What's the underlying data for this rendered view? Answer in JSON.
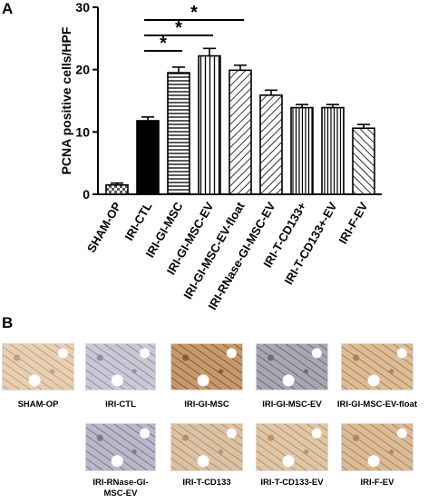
{
  "panels": {
    "a_label": "A",
    "b_label": "B"
  },
  "chart_data": {
    "type": "bar",
    "title": "",
    "xlabel": "",
    "ylabel": "PCNA positive cells/HPF",
    "ylim": [
      0,
      30
    ],
    "yticks": [
      0,
      10,
      20,
      30
    ],
    "grid": false,
    "categories": [
      "SHAM-OP",
      "IRI-CTL",
      "IRI-GI-MSC",
      "IRI-GI-MSC-EV",
      "IRI-GI-MSC-EV-float",
      "IRI-RNase-GI-MSC-EV",
      "IRI-T-CD133+",
      "IRI-T-CD133+-EV",
      "IRI-F-EV"
    ],
    "values": [
      1.5,
      11.8,
      19.5,
      22.2,
      19.9,
      15.9,
      13.9,
      13.9,
      10.6
    ],
    "errors": [
      0.3,
      0.6,
      0.9,
      1.2,
      0.8,
      0.8,
      0.5,
      0.5,
      0.6
    ],
    "patterns": [
      "checker",
      "solid",
      "hlines",
      "vlines",
      "diag-right",
      "diag-right",
      "vlines-dense",
      "vlines-dense",
      "diag-left"
    ],
    "significance": [
      {
        "from": "IRI-CTL",
        "to": "IRI-GI-MSC",
        "label": "*"
      },
      {
        "from": "IRI-CTL",
        "to": "IRI-GI-MSC-EV",
        "label": "*"
      },
      {
        "from": "IRI-CTL",
        "to": "IRI-GI-MSC-EV-float",
        "label": "*"
      }
    ]
  },
  "micrographs": [
    {
      "label": "SHAM-OP",
      "stain": "#e6cfb4",
      "accent": "#c99d78"
    },
    {
      "label": "IRI-CTL",
      "stain": "#c9c9d6",
      "accent": "#8f8fa8"
    },
    {
      "label": "IRI-GI-MSC",
      "stain": "#c49a6c",
      "accent": "#8a5a30"
    },
    {
      "label": "IRI-GI-MSC-EV",
      "stain": "#a8a6b2",
      "accent": "#6f6b7c"
    },
    {
      "label": "IRI-GI-MSC-EV-float",
      "stain": "#dcbd98",
      "accent": "#b08058"
    },
    {
      "label": "IRI-RNase-GI-MSC-EV",
      "stain": "#b8b8c8",
      "accent": "#7a7a94"
    },
    {
      "label": "IRI-T-CD133",
      "stain": "#dcc2a4",
      "accent": "#b3906c"
    },
    {
      "label": "IRI-T-CD133-EV",
      "stain": "#e0c6a6",
      "accent": "#b8926a"
    },
    {
      "label": "IRI-F-EV",
      "stain": "#dabb96",
      "accent": "#ad8560"
    }
  ]
}
